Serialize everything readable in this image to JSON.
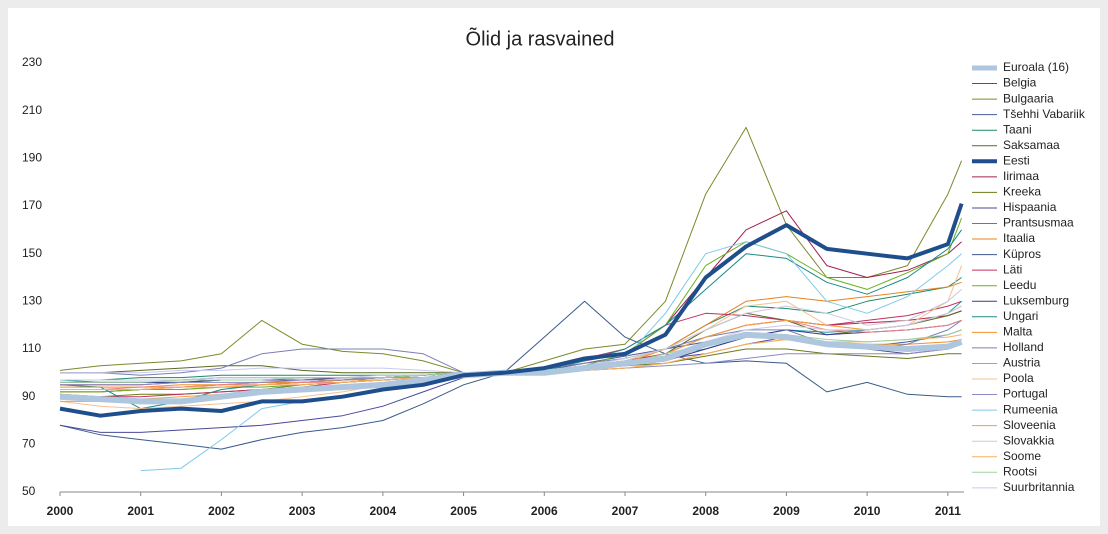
{
  "chart_data": {
    "type": "line",
    "title": "Õlid ja rasvained",
    "x": [
      2000,
      2000.5,
      2001,
      2001.5,
      2002,
      2002.5,
      2003,
      2003.5,
      2004,
      2004.5,
      2005,
      2005.5,
      2006,
      2006.5,
      2007,
      2007.5,
      2008,
      2008.5,
      2009,
      2009.5,
      2010,
      2010.5,
      2011,
      2011.17
    ],
    "xlim": [
      2000,
      2011.2
    ],
    "xticks": [
      2000,
      2001,
      2002,
      2003,
      2004,
      2005,
      2006,
      2007,
      2008,
      2009,
      2010,
      2011
    ],
    "ylim": [
      50,
      230
    ],
    "yticks": [
      50,
      70,
      90,
      110,
      130,
      150,
      170,
      190,
      210,
      230
    ],
    "grid": false,
    "legend": "right",
    "series": [
      {
        "name": "Euroala (16)",
        "color": "#aec6de",
        "line_width": 6,
        "values": [
          90,
          89,
          88,
          88,
          90,
          92,
          93,
          94,
          95,
          97,
          99,
          100,
          100,
          102,
          104,
          106,
          112,
          116,
          115,
          112,
          111,
          110,
          111,
          113
        ]
      },
      {
        "name": "Belgia",
        "color": "#b0284a",
        "line_width": 1,
        "values": [
          95,
          95,
          95,
          96,
          97,
          97,
          97,
          98,
          98,
          99,
          100,
          100,
          101,
          103,
          105,
          108,
          115,
          120,
          122,
          120,
          121,
          122,
          124,
          126
        ]
      },
      {
        "name": "Bulgaaria",
        "color": "#7a8a2a",
        "line_width": 1,
        "values": [
          101,
          103,
          104,
          105,
          108,
          122,
          112,
          109,
          108,
          105,
          100,
          100,
          105,
          110,
          112,
          130,
          175,
          203,
          162,
          140,
          140,
          145,
          175,
          189
        ]
      },
      {
        "name": "Tšehhi Vabariik",
        "color": "#4a5a9a",
        "line_width": 1,
        "values": [
          97,
          97,
          97,
          97,
          98,
          98,
          98,
          98,
          98,
          99,
          100,
          100,
          101,
          104,
          107,
          110,
          113,
          116,
          116,
          112,
          111,
          113,
          116,
          118
        ]
      },
      {
        "name": "Taani",
        "color": "#1a8a6a",
        "line_width": 1,
        "values": [
          97,
          97,
          98,
          98,
          99,
          99,
          99,
          99,
          99,
          99,
          100,
          100,
          101,
          102,
          105,
          110,
          120,
          128,
          127,
          125,
          130,
          133,
          136,
          140
        ]
      },
      {
        "name": "Saksamaa",
        "color": "#5a6a20",
        "line_width": 1,
        "values": [
          100,
          100,
          101,
          102,
          103,
          103,
          101,
          100,
          100,
          100,
          100,
          100,
          101,
          102,
          104,
          108,
          118,
          125,
          122,
          116,
          118,
          120,
          124,
          126
        ]
      },
      {
        "name": "Eesti",
        "color": "#1f4e8c",
        "line_width": 4,
        "values": [
          85,
          82,
          84,
          85,
          84,
          88,
          88,
          90,
          93,
          95,
          99,
          100,
          102,
          106,
          108,
          116,
          140,
          153,
          162,
          152,
          150,
          148,
          154,
          171
        ]
      },
      {
        "name": "Iirimaa",
        "color": "#a02050",
        "line_width": 1,
        "values": [
          92,
          92,
          93,
          94,
          95,
          96,
          96,
          97,
          98,
          99,
          100,
          100,
          102,
          105,
          108,
          120,
          140,
          160,
          168,
          145,
          140,
          143,
          150,
          155
        ]
      },
      {
        "name": "Kreeka",
        "color": "#6a7a1a",
        "line_width": 1,
        "values": [
          90,
          90,
          91,
          91,
          92,
          93,
          95,
          96,
          97,
          98,
          99,
          100,
          101,
          102,
          103,
          104,
          107,
          110,
          110,
          108,
          107,
          106,
          108,
          108
        ]
      },
      {
        "name": "Hispaania",
        "color": "#4a4a9a",
        "line_width": 1,
        "values": [
          78,
          75,
          75,
          76,
          77,
          78,
          80,
          82,
          86,
          92,
          98,
          100,
          101,
          103,
          104,
          106,
          108,
          112,
          115,
          112,
          110,
          108,
          110,
          112
        ]
      },
      {
        "name": "Prantsusmaa",
        "color": "#1a9aaa",
        "line_width": 1,
        "values": [
          97,
          96,
          96,
          96,
          97,
          97,
          98,
          98,
          98,
          99,
          100,
          100,
          101,
          102,
          104,
          107,
          110,
          115,
          118,
          117,
          118,
          120,
          125,
          130
        ]
      },
      {
        "name": "Itaalia",
        "color": "#e8821e",
        "line_width": 1,
        "values": [
          92,
          92,
          93,
          93,
          94,
          95,
          96,
          97,
          98,
          99,
          100,
          100,
          101,
          102,
          104,
          110,
          120,
          130,
          132,
          130,
          132,
          134,
          136,
          138
        ]
      },
      {
        "name": "Küpros",
        "color": "#3a5a8a",
        "line_width": 1,
        "values": [
          78,
          74,
          72,
          70,
          68,
          72,
          75,
          77,
          80,
          87,
          95,
          100,
          115,
          130,
          115,
          108,
          104,
          105,
          104,
          92,
          96,
          91,
          90,
          90
        ]
      },
      {
        "name": "Läti",
        "color": "#c03060",
        "line_width": 1,
        "values": [
          91,
          90,
          90,
          91,
          92,
          93,
          94,
          96,
          97,
          98,
          100,
          100,
          102,
          106,
          110,
          120,
          125,
          124,
          122,
          120,
          122,
          124,
          128,
          130
        ]
      },
      {
        "name": "Leedu",
        "color": "#6ab020",
        "line_width": 1,
        "values": [
          92,
          92,
          93,
          93,
          94,
          94,
          95,
          96,
          97,
          98,
          99,
          100,
          101,
          103,
          108,
          120,
          145,
          155,
          150,
          140,
          135,
          142,
          150,
          165
        ]
      },
      {
        "name": "Luksemburg",
        "color": "#3a3a8a",
        "line_width": 1,
        "values": [
          96,
          96,
          96,
          96,
          97,
          97,
          97,
          98,
          98,
          99,
          100,
          100,
          101,
          102,
          103,
          105,
          110,
          115,
          118,
          116,
          117,
          118,
          120,
          122
        ]
      },
      {
        "name": "Ungari",
        "color": "#1a8a8a",
        "line_width": 1,
        "values": [
          95,
          94,
          85,
          88,
          93,
          95,
          96,
          97,
          98,
          99,
          100,
          100,
          101,
          105,
          110,
          120,
          135,
          150,
          148,
          138,
          133,
          140,
          152,
          160
        ]
      },
      {
        "name": "Malta",
        "color": "#f0902a",
        "line_width": 1,
        "values": [
          94,
          94,
          94,
          95,
          95,
          96,
          96,
          97,
          97,
          98,
          99,
          100,
          101,
          101,
          102,
          104,
          108,
          112,
          114,
          112,
          112,
          112,
          113,
          114
        ]
      },
      {
        "name": "Holland",
        "color": "#7a80b0",
        "line_width": 1,
        "values": [
          100,
          100,
          99,
          100,
          102,
          108,
          110,
          110,
          110,
          108,
          100,
          100,
          102,
          104,
          106,
          110,
          115,
          118,
          118,
          112,
          110,
          112,
          118,
          122
        ]
      },
      {
        "name": "Austria",
        "color": "#f08080",
        "line_width": 1,
        "values": [
          93,
          93,
          94,
          94,
          95,
          95,
          96,
          96,
          97,
          98,
          99,
          100,
          101,
          102,
          104,
          108,
          115,
          120,
          122,
          118,
          117,
          118,
          120,
          122
        ]
      },
      {
        "name": "Poola",
        "color": "#f5c090",
        "line_width": 1,
        "values": [
          88,
          86,
          85,
          86,
          87,
          88,
          90,
          92,
          95,
          97,
          99,
          100,
          101,
          103,
          105,
          110,
          118,
          128,
          130,
          120,
          118,
          120,
          130,
          145
        ]
      },
      {
        "name": "Portugal",
        "color": "#8a8ac0",
        "line_width": 1,
        "values": [
          95,
          95,
          95,
          96,
          96,
          96,
          97,
          97,
          98,
          98,
          99,
          100,
          100,
          101,
          102,
          103,
          104,
          106,
          108,
          108,
          108,
          108,
          110,
          112
        ]
      },
      {
        "name": "Rumeenia",
        "color": "#80c8e8",
        "line_width": 1,
        "values": [
          null,
          null,
          59,
          60,
          72,
          85,
          88,
          90,
          93,
          96,
          99,
          100,
          101,
          103,
          106,
          125,
          150,
          155,
          150,
          130,
          125,
          132,
          145,
          150
        ]
      },
      {
        "name": "Sloveenia",
        "color": "#f0a040",
        "line_width": 1,
        "values": [
          88,
          88,
          89,
          90,
          91,
          92,
          93,
          94,
          95,
          97,
          99,
          100,
          101,
          102,
          104,
          108,
          115,
          120,
          122,
          120,
          118,
          120,
          125,
          128
        ]
      },
      {
        "name": "Slovakkia",
        "color": "#c8c8e0",
        "line_width": 1,
        "values": [
          97,
          97,
          97,
          97,
          98,
          98,
          98,
          98,
          99,
          99,
          100,
          100,
          101,
          103,
          106,
          110,
          118,
          125,
          128,
          125,
          120,
          122,
          130,
          135
        ]
      },
      {
        "name": "Soome",
        "color": "#f8b060",
        "line_width": 1,
        "values": [
          93,
          93,
          93,
          94,
          94,
          95,
          95,
          96,
          97,
          98,
          99,
          100,
          100,
          101,
          102,
          104,
          108,
          112,
          114,
          113,
          113,
          114,
          115,
          116
        ]
      },
      {
        "name": "Rootsi",
        "color": "#a0d0a0",
        "line_width": 1,
        "values": [
          96,
          96,
          96,
          97,
          97,
          97,
          98,
          98,
          98,
          99,
          100,
          100,
          101,
          102,
          104,
          108,
          112,
          115,
          116,
          114,
          113,
          114,
          116,
          118
        ]
      },
      {
        "name": "Suurbritannia",
        "color": "#c8c8f0",
        "line_width": 1,
        "values": [
          100,
          100,
          100,
          101,
          101,
          102,
          102,
          102,
          102,
          101,
          100,
          100,
          100,
          101,
          103,
          107,
          113,
          118,
          120,
          118,
          118,
          120,
          125,
          128
        ]
      }
    ]
  }
}
